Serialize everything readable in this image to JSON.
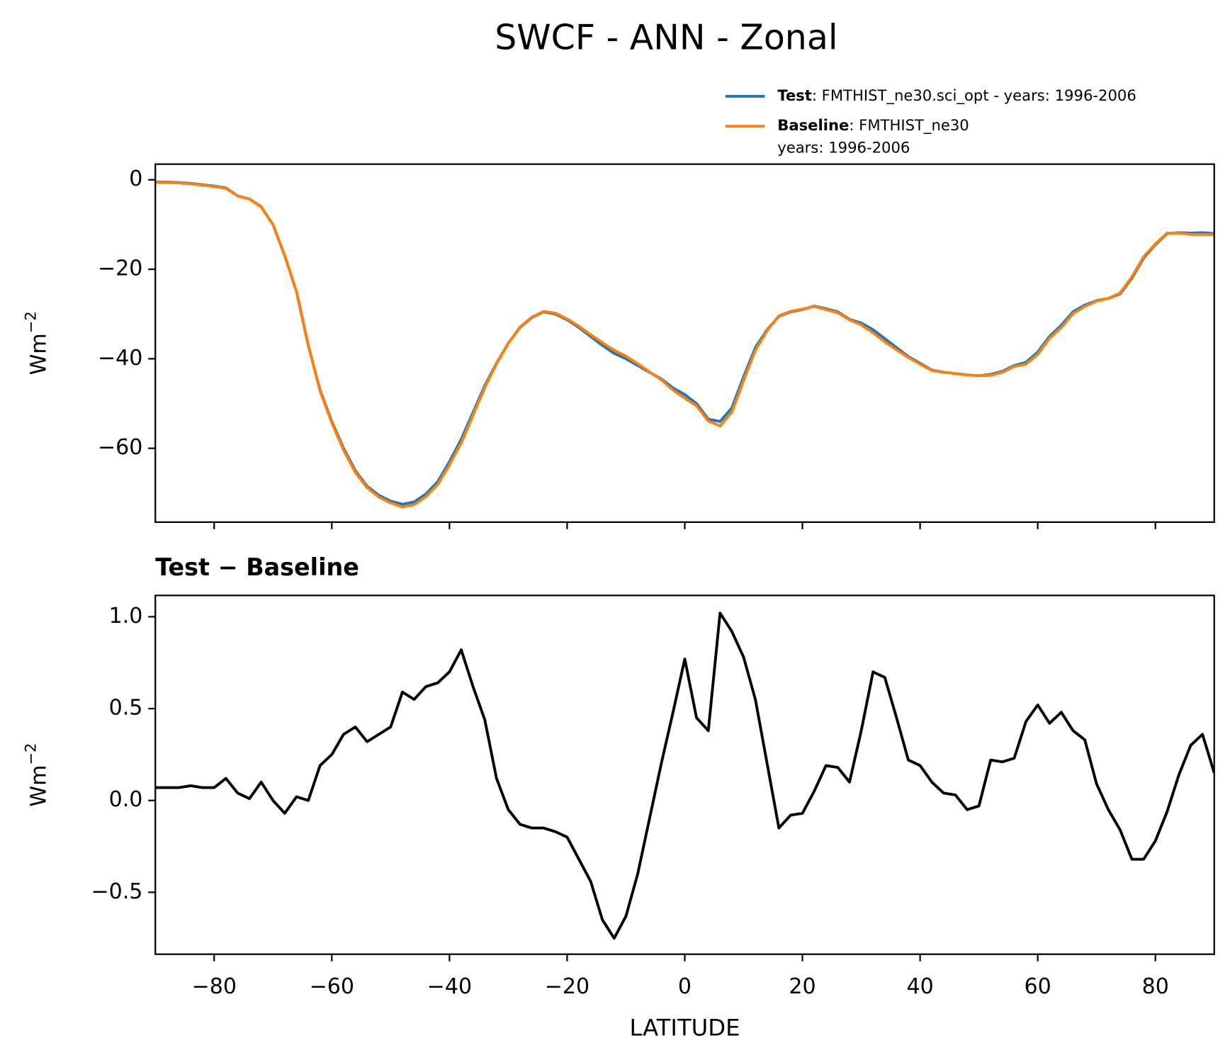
{
  "title": "SWCF - ANN - Zonal",
  "chart_data": [
    {
      "type": "line",
      "ylabel": "Wm",
      "ylabel_exponent": "−2",
      "x": [
        -90,
        -88,
        -86,
        -84,
        -82,
        -80,
        -78,
        -76,
        -74,
        -72,
        -70,
        -68,
        -66,
        -64,
        -62,
        -60,
        -58,
        -56,
        -54,
        -52,
        -50,
        -48,
        -46,
        -44,
        -42,
        -40,
        -38,
        -36,
        -34,
        -32,
        -30,
        -28,
        -26,
        -24,
        -22,
        -20,
        -18,
        -16,
        -14,
        -12,
        -10,
        -8,
        -6,
        -4,
        -2,
        0,
        2,
        4,
        6,
        8,
        10,
        12,
        14,
        16,
        18,
        20,
        22,
        24,
        26,
        28,
        30,
        32,
        34,
        36,
        38,
        40,
        42,
        44,
        46,
        48,
        50,
        52,
        54,
        56,
        58,
        60,
        62,
        64,
        66,
        68,
        70,
        72,
        74,
        76,
        78,
        80,
        82,
        84,
        86,
        88,
        90
      ],
      "series": [
        {
          "name": "Test",
          "description": [
            ": FMTHIST_ne30.sci_opt - years: 1996-2006"
          ],
          "color": "#1f77b4",
          "values": [
            -0.5,
            -0.5,
            -0.6,
            -0.8,
            -1.1,
            -1.4,
            -1.8,
            -3.6,
            -4.3,
            -6.0,
            -10,
            -17,
            -25,
            -37,
            -47,
            -54,
            -60,
            -65,
            -68.5,
            -70.5,
            -71.8,
            -72.5,
            -72,
            -70.2,
            -67.5,
            -63,
            -58,
            -52,
            -46,
            -41,
            -36.5,
            -33,
            -30.8,
            -29.5,
            -30,
            -31.3,
            -33,
            -35,
            -37,
            -38.8,
            -40,
            -41.5,
            -43,
            -44.5,
            -46.5,
            -48,
            -50,
            -53.5,
            -54,
            -51,
            -44,
            -37.5,
            -33.5,
            -30.5,
            -29.5,
            -29,
            -28.2,
            -28.8,
            -29.5,
            -31.2,
            -32,
            -33.5,
            -35.5,
            -37.5,
            -39.5,
            -41,
            -42.5,
            -43,
            -43.3,
            -43.6,
            -43.8,
            -43.5,
            -42.8,
            -41.5,
            -40.8,
            -38.5,
            -35,
            -32.5,
            -29.5,
            -28,
            -27,
            -26.5,
            -25.5,
            -22,
            -17.5,
            -14.5,
            -12,
            -11.8,
            -11.9,
            -11.8,
            -12
          ]
        },
        {
          "name": "Baseline",
          "description": [
            ": FMTHIST_ne30",
            "years: 1996-2006"
          ],
          "color": "#ff7f0e",
          "values": [
            -0.6,
            -0.6,
            -0.7,
            -0.9,
            -1.2,
            -1.5,
            -1.9,
            -3.6,
            -4.3,
            -6.1,
            -10,
            -16.9,
            -25,
            -37,
            -47.2,
            -54.3,
            -60.4,
            -65.4,
            -68.8,
            -70.9,
            -72.2,
            -73.1,
            -72.6,
            -70.8,
            -68.1,
            -63.7,
            -58.8,
            -52.6,
            -46.4,
            -41.1,
            -36.5,
            -32.9,
            -30.7,
            -29.4,
            -29.8,
            -31.1,
            -32.7,
            -34.6,
            -36.4,
            -38.1,
            -39.4,
            -41.1,
            -42.9,
            -44.7,
            -47,
            -48.8,
            -50.5,
            -53.9,
            -55,
            -51.9,
            -44.8,
            -38.1,
            -33.7,
            -30.4,
            -29.4,
            -28.9,
            -28.3,
            -29,
            -29.7,
            -31.3,
            -32.4,
            -34.2,
            -36.2,
            -38,
            -39.7,
            -41.2,
            -42.6,
            -43,
            -43.3,
            -43.6,
            -43.8,
            -43.7,
            -43,
            -41.7,
            -41.2,
            -39,
            -35.4,
            -33,
            -29.9,
            -28.3,
            -27.1,
            -26.5,
            -25.3,
            -21.7,
            -17.2,
            -14.3,
            -11.9,
            -11.9,
            -12.2,
            -12.2,
            -12.2
          ]
        }
      ],
      "xlim": [
        -90,
        90
      ],
      "xticks": [
        -80,
        -60,
        -40,
        -20,
        0,
        20,
        40,
        60,
        80
      ],
      "ylim": [
        -76.5,
        3.5
      ],
      "yticks": [
        0,
        {
          "value": -20,
          "label": "−20"
        },
        {
          "value": -40,
          "label": "−40"
        },
        {
          "value": -60,
          "label": "−60"
        }
      ],
      "legend": "upper right"
    },
    {
      "type": "line",
      "title": "Test − Baseline",
      "xlabel": "LATITUDE",
      "ylabel": "Wm",
      "ylabel_exponent": "−2",
      "x": [
        -90,
        -88,
        -86,
        -84,
        -82,
        -80,
        -78,
        -76,
        -74,
        -72,
        -70,
        -68,
        -66,
        -64,
        -62,
        -60,
        -58,
        -56,
        -54,
        -52,
        -50,
        -48,
        -46,
        -44,
        -42,
        -40,
        -38,
        -36,
        -34,
        -32,
        -30,
        -28,
        -26,
        -24,
        -22,
        -20,
        -18,
        -16,
        -14,
        -12,
        -10,
        -8,
        -6,
        -4,
        -2,
        0,
        2,
        4,
        6,
        8,
        10,
        12,
        14,
        16,
        18,
        20,
        22,
        24,
        26,
        28,
        30,
        32,
        34,
        36,
        38,
        40,
        42,
        44,
        46,
        48,
        50,
        52,
        54,
        56,
        58,
        60,
        62,
        64,
        66,
        68,
        70,
        72,
        74,
        76,
        78,
        80,
        82,
        84,
        86,
        88,
        90
      ],
      "color": "#000000",
      "values": [
        0.07,
        0.07,
        0.07,
        0.08,
        0.07,
        0.07,
        0.12,
        0.04,
        0.01,
        0.1,
        0.0,
        -0.07,
        0.02,
        0.0,
        0.19,
        0.25,
        0.36,
        0.4,
        0.32,
        0.36,
        0.4,
        0.59,
        0.55,
        0.62,
        0.64,
        0.7,
        0.82,
        0.62,
        0.44,
        0.12,
        -0.05,
        -0.13,
        -0.15,
        -0.15,
        -0.17,
        -0.2,
        -0.32,
        -0.44,
        -0.65,
        -0.75,
        -0.63,
        -0.4,
        -0.1,
        0.2,
        0.48,
        0.77,
        0.45,
        0.38,
        1.02,
        0.92,
        0.78,
        0.55,
        0.2,
        -0.15,
        -0.08,
        -0.07,
        0.05,
        0.19,
        0.18,
        0.1,
        0.38,
        0.7,
        0.67,
        0.45,
        0.22,
        0.19,
        0.1,
        0.04,
        0.03,
        -0.05,
        -0.03,
        0.22,
        0.21,
        0.23,
        0.43,
        0.52,
        0.42,
        0.48,
        0.38,
        0.33,
        0.09,
        -0.05,
        -0.16,
        -0.32,
        -0.32,
        -0.22,
        -0.06,
        0.14,
        0.3,
        0.36,
        0.15
      ],
      "xlim": [
        -90,
        90
      ],
      "xticks": [
        {
          "value": -80,
          "label": "−80"
        },
        {
          "value": -60,
          "label": "−60"
        },
        {
          "value": -40,
          "label": "−40"
        },
        {
          "value": -20,
          "label": "−20"
        },
        0,
        20,
        40,
        60,
        80
      ],
      "ylim": [
        -0.837,
        1.116
      ],
      "yticks": [
        {
          "value": -0.5,
          "label": "−0.5"
        },
        {
          "value": 0,
          "label": "0.0"
        },
        {
          "value": 0.5,
          "label": "0.5"
        },
        {
          "value": 1,
          "label": "1.0"
        }
      ]
    }
  ]
}
